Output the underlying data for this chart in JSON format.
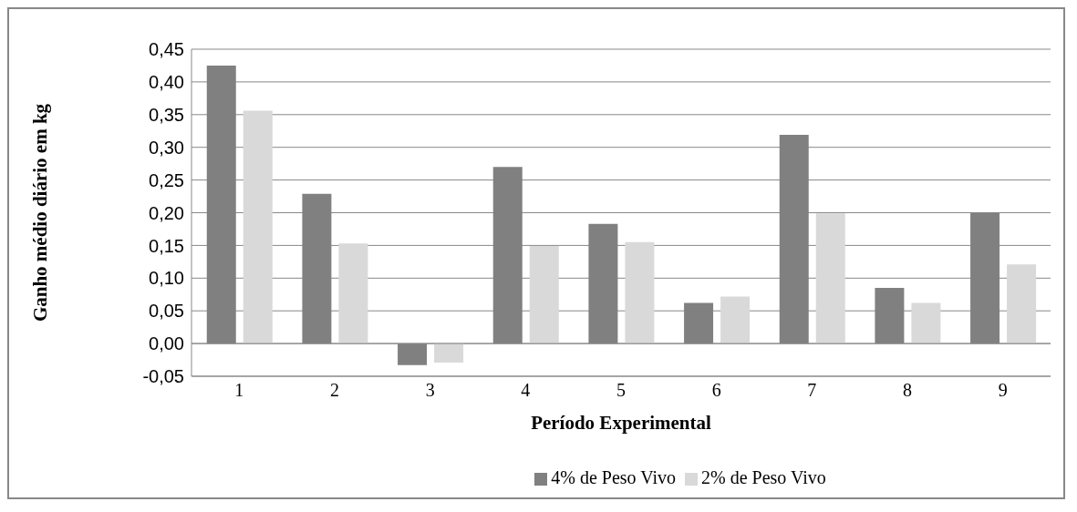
{
  "chart_data": {
    "type": "bar",
    "xlabel": "Período Experimental",
    "ylabel": "Ganho médio diário em kg",
    "categories": [
      "1",
      "2",
      "3",
      "4",
      "5",
      "6",
      "7",
      "8",
      "9"
    ],
    "series": [
      {
        "name": "4% de Peso Vivo",
        "color": "#808080",
        "values": [
          0.425,
          0.229,
          -0.033,
          0.27,
          0.183,
          0.062,
          0.319,
          0.085,
          0.2
        ]
      },
      {
        "name": "2% de Peso Vivo",
        "color": "#d9d9d9",
        "values": [
          0.356,
          0.153,
          -0.029,
          0.149,
          0.155,
          0.072,
          0.199,
          0.062,
          0.121
        ]
      }
    ],
    "ylim": [
      -0.05,
      0.45
    ],
    "yticks": [
      {
        "value": -0.05,
        "label": "-0,05"
      },
      {
        "value": 0,
        "label": "0,00"
      },
      {
        "value": 0.05,
        "label": "0,05"
      },
      {
        "value": 0.1,
        "label": "0,10"
      },
      {
        "value": 0.15,
        "label": "0,15"
      },
      {
        "value": 0.2,
        "label": "0,20"
      },
      {
        "value": 0.25,
        "label": "0,25"
      },
      {
        "value": 0.3,
        "label": "0,30"
      },
      {
        "value": 0.35,
        "label": "0,35"
      },
      {
        "value": 0.4,
        "label": "0,40"
      },
      {
        "value": 0.45,
        "label": "0,45"
      }
    ],
    "grid": "y",
    "legend": "bottom"
  }
}
